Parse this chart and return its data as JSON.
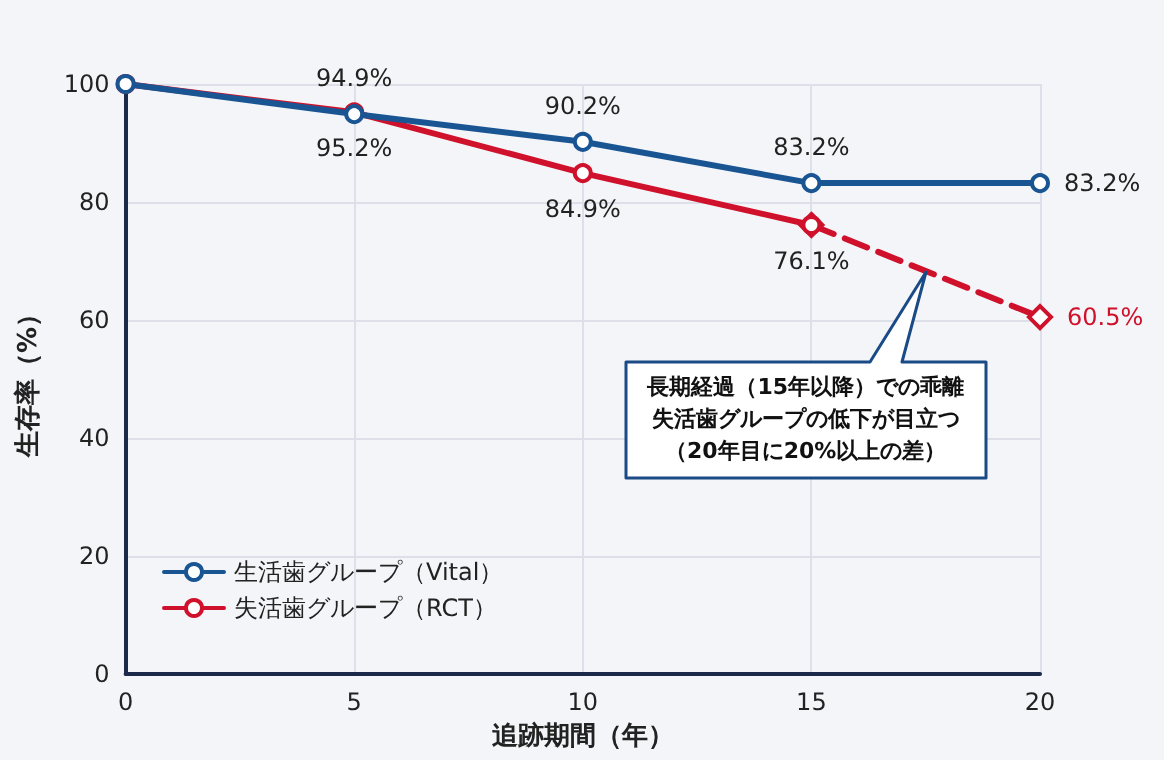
{
  "chart_data": {
    "type": "line",
    "xlabel": "追跡期間（年）",
    "ylabel": "生存率（%）",
    "x": [
      0,
      5,
      10,
      15,
      20
    ],
    "xlim": [
      0,
      20
    ],
    "xticks": [
      0,
      5,
      10,
      15,
      20
    ],
    "ylim": [
      0,
      100
    ],
    "yticks": [
      0,
      20,
      40,
      60,
      80,
      100
    ],
    "grid": true,
    "legend": "bottom left",
    "marker": "circle",
    "series": [
      {
        "name": "生活歯グループ（Vital）",
        "color": "#1a5593",
        "values": [
          100,
          94.9,
          90.2,
          83.2,
          83.2
        ],
        "value_labels": [
          null,
          "94.9%",
          "90.2%",
          "83.2%",
          "83.2%"
        ]
      },
      {
        "name": "失活歯グループ（RCT）",
        "color": "#d0112b",
        "values": [
          100,
          95.2,
          84.9,
          76.1,
          null
        ],
        "value_labels": [
          null,
          "95.2%",
          "84.9%",
          "76.1%",
          null
        ]
      },
      {
        "color": "#d0112b",
        "values": [
          null,
          null,
          null,
          76.1,
          60.5
        ],
        "line_style": "dashed",
        "marker": "diamond",
        "value_labels": [
          null,
          null,
          null,
          null,
          "60.5%"
        ]
      }
    ],
    "annotations": [
      "長期経過（15年以降）での乖離失活歯グループの低下が目立つ（20年目に20%以上の差）"
    ]
  }
}
